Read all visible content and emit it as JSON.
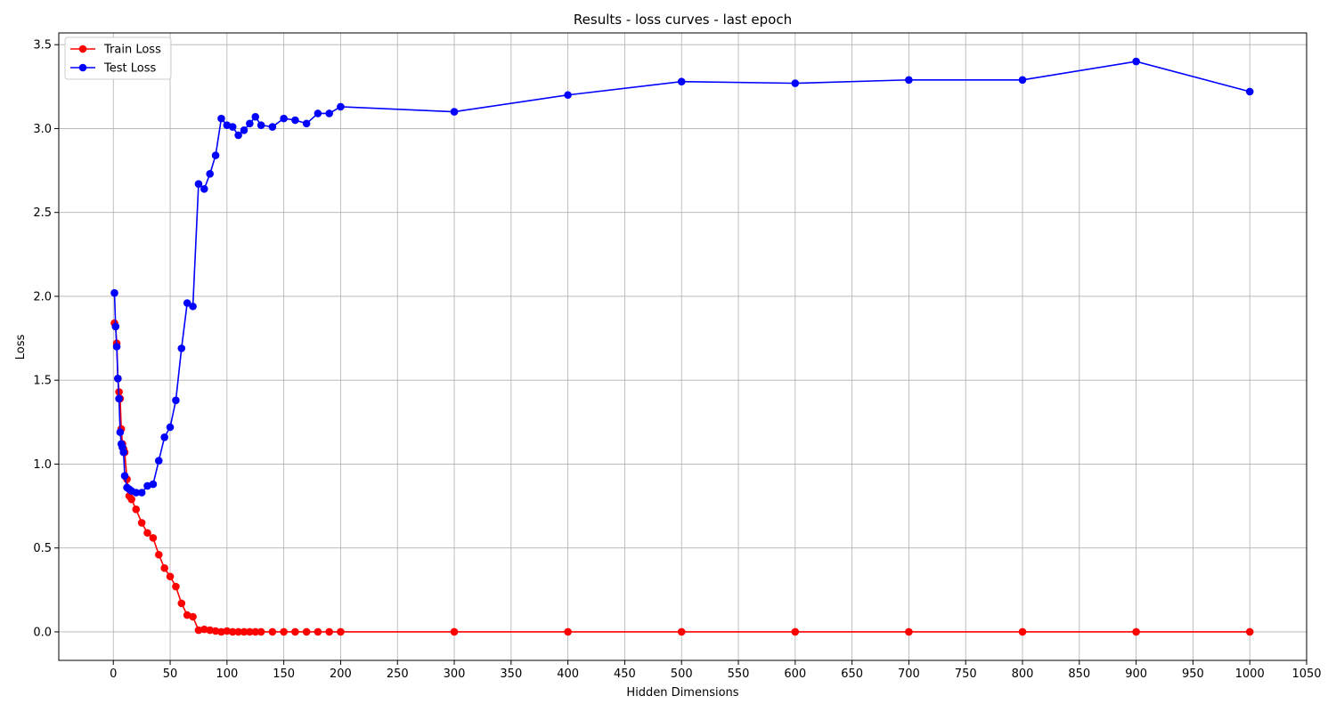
{
  "chart_data": {
    "type": "line",
    "title": "Results - loss curves - last epoch",
    "xlabel": "Hidden Dimensions",
    "ylabel": "Loss",
    "xlim": [
      -48,
      1050
    ],
    "ylim": [
      -0.17,
      3.57
    ],
    "xticks": [
      0,
      50,
      100,
      150,
      200,
      250,
      300,
      350,
      400,
      450,
      500,
      550,
      600,
      650,
      700,
      750,
      800,
      850,
      900,
      950,
      1000,
      1050
    ],
    "yticks": [
      0.0,
      0.5,
      1.0,
      1.5,
      2.0,
      2.5,
      3.0,
      3.5
    ],
    "ytick_labels": [
      "0.0",
      "0.5",
      "1.0",
      "1.5",
      "2.0",
      "2.5",
      "3.0",
      "3.5"
    ],
    "grid": true,
    "legend_position": "top-left",
    "x": [
      1,
      2,
      3,
      4,
      5,
      6,
      7,
      8,
      9,
      10,
      12,
      14,
      16,
      20,
      25,
      30,
      35,
      40,
      45,
      50,
      55,
      60,
      65,
      70,
      75,
      80,
      85,
      90,
      95,
      100,
      105,
      110,
      115,
      120,
      125,
      130,
      140,
      150,
      160,
      170,
      180,
      190,
      200,
      300,
      400,
      500,
      600,
      700,
      800,
      900,
      1000
    ],
    "series": [
      {
        "name": "Train Loss",
        "color": "#ff0000",
        "values": [
          1.84,
          1.82,
          1.72,
          1.51,
          1.43,
          1.39,
          1.21,
          1.12,
          1.09,
          1.07,
          0.91,
          0.81,
          0.79,
          0.73,
          0.65,
          0.59,
          0.56,
          0.46,
          0.38,
          0.33,
          0.27,
          0.17,
          0.1,
          0.09,
          0.01,
          0.015,
          0.01,
          0.005,
          0.0,
          0.005,
          0.0,
          0.0,
          0.0,
          0.0,
          0.0,
          0.0,
          0.0,
          0.0,
          0.0,
          0.0,
          0.0,
          0.0,
          0.0,
          0.0,
          0.0,
          0.0,
          0.0,
          0.0,
          0.0,
          0.0,
          0.0
        ]
      },
      {
        "name": "Test Loss",
        "color": "#0000ff",
        "values": [
          2.02,
          1.82,
          1.7,
          1.51,
          1.39,
          1.19,
          1.12,
          1.1,
          1.07,
          0.93,
          0.86,
          0.85,
          0.84,
          0.83,
          0.83,
          0.87,
          0.88,
          1.02,
          1.16,
          1.22,
          1.38,
          1.69,
          1.96,
          1.94,
          2.67,
          2.64,
          2.73,
          2.84,
          3.06,
          3.02,
          3.01,
          2.96,
          2.99,
          3.03,
          3.07,
          3.02,
          3.01,
          3.06,
          3.05,
          3.03,
          3.09,
          3.09,
          3.13,
          3.1,
          3.2,
          3.28,
          3.27,
          3.29,
          3.29,
          3.4,
          3.22
        ]
      }
    ]
  }
}
